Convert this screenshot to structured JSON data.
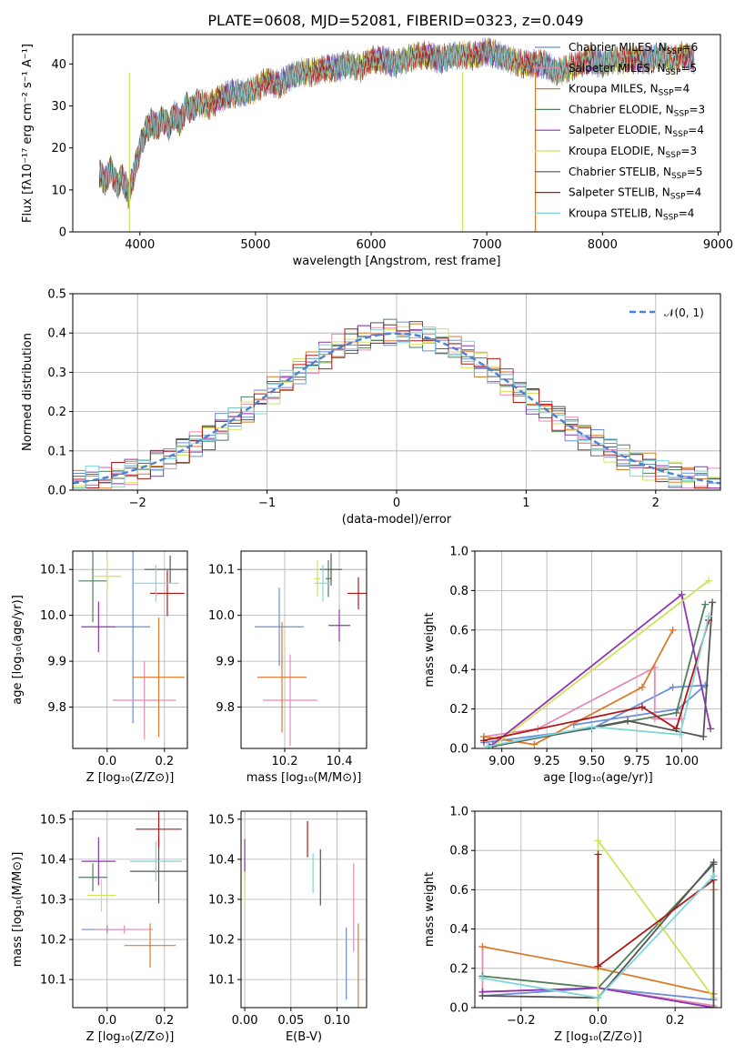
{
  "figure": {
    "title": "PLATE=0608, MJD=52081, FIBERID=0323, z=0.049"
  },
  "colors": {
    "Chabrier MILES": "#6b8fd6",
    "Salpeter MILES": "#e68ab6",
    "Kroupa MILES": "#d97b2b",
    "Chabrier ELODIE": "#4f7f5a",
    "Salpeter ELODIE": "#8e34b0",
    "Kroupa ELODIE": "#cfe35a",
    "Chabrier STELIB": "#555555",
    "Salpeter STELIB": "#b01818",
    "Kroupa STELIB": "#7fd6d8"
  },
  "chart_data": [
    {
      "id": "spectrum",
      "type": "line",
      "xlabel": "wavelength [Angstrom, rest frame]",
      "ylabel": "Flux [fλ10⁻¹⁷ erg cm⁻² s⁻¹ A⁻¹]",
      "xlim": [
        3420,
        9020
      ],
      "ylim": [
        0,
        47
      ],
      "xticks": [
        "4000",
        "5000",
        "6000",
        "7000",
        "8000",
        "9000"
      ],
      "yticks": [
        "0",
        "10",
        "20",
        "30",
        "40"
      ],
      "grid": false,
      "legend_position": "right",
      "legend": [
        {
          "name": "Chabrier MILES",
          "nssp": "6"
        },
        {
          "name": "Salpeter MILES",
          "nssp": "5"
        },
        {
          "name": "Kroupa MILES",
          "nssp": "4"
        },
        {
          "name": "Chabrier ELODIE",
          "nssp": "3"
        },
        {
          "name": "Salpeter ELODIE",
          "nssp": "4"
        },
        {
          "name": "Kroupa ELODIE",
          "nssp": "3"
        },
        {
          "name": "Chabrier STELIB",
          "nssp": "5"
        },
        {
          "name": "Salpeter STELIB",
          "nssp": "4"
        },
        {
          "name": "Kroupa STELIB",
          "nssp": "4"
        }
      ],
      "data_x": [
        3650,
        3700,
        3750,
        3800,
        3850,
        3900,
        3950,
        4000,
        4050,
        4100,
        4150,
        4200,
        4250,
        4300,
        4350,
        4400,
        4450,
        4500,
        4600,
        4700,
        4800,
        4900,
        5000,
        5100,
        5200,
        5300,
        5400,
        5500,
        5600,
        5700,
        5800,
        5900,
        6000,
        6100,
        6200,
        6300,
        6400,
        6500,
        6600,
        6700,
        6800,
        6900,
        7000,
        7100,
        7200,
        7300,
        7400,
        7500,
        7600,
        7700,
        7800,
        7900,
        8000,
        8100,
        8200,
        8300,
        8400,
        8500,
        8600,
        8700,
        8800
      ],
      "data_y": [
        14,
        12,
        15,
        11,
        13,
        9,
        14,
        20,
        24,
        26,
        25,
        27,
        25,
        28,
        26,
        30,
        29,
        31,
        30,
        32,
        33,
        33,
        34,
        36,
        35,
        37,
        38,
        38,
        39,
        39,
        40,
        39,
        41,
        41,
        40,
        41,
        42,
        42,
        41,
        42,
        42,
        42,
        43,
        42,
        41,
        40,
        40,
        40,
        38,
        39,
        40,
        41,
        40,
        41,
        41,
        41,
        41,
        42,
        41,
        42,
        41
      ],
      "spikes_x": [
        3910,
        6790,
        7420
      ]
    },
    {
      "id": "residuals",
      "type": "bar",
      "xlabel": "(data-model)/error",
      "ylabel": "Normed distribution",
      "xlim": [
        -2.5,
        2.5
      ],
      "ylim": [
        0,
        0.5
      ],
      "xticks": [
        "−2",
        "−1",
        "0",
        "1",
        "2"
      ],
      "yticks": [
        "0.0",
        "0.1",
        "0.2",
        "0.3",
        "0.4",
        "0.5"
      ],
      "grid": true,
      "legend_position": "top-right",
      "legend_label": "𝒩(0, 1)",
      "bin_width": 0.1
    },
    {
      "id": "age-vs-Z",
      "type": "scatter",
      "xlabel": "Z [log₁₀(Z/Z⊙)]",
      "ylabel": "age  [log₁₀(age/yr)]",
      "xlim": [
        -0.12,
        0.28
      ],
      "ylim": [
        9.71,
        10.14
      ],
      "xticks": [
        "0.0",
        "0.2"
      ],
      "yticks": [
        "9.8",
        "9.9",
        "10.0",
        "10.1"
      ],
      "grid": true,
      "points": [
        {
          "series": "Chabrier MILES",
          "x": 0.09,
          "y": 9.975,
          "xerr": 0.06,
          "yerr": 0.21
        },
        {
          "series": "Salpeter MILES",
          "x": 0.13,
          "y": 9.815,
          "xerr": 0.11,
          "yerr": 0.085
        },
        {
          "series": "Kroupa MILES",
          "x": 0.18,
          "y": 9.865,
          "xerr": 0.09,
          "yerr": 0.13
        },
        {
          "series": "Chabrier ELODIE",
          "x": -0.05,
          "y": 10.075,
          "xerr": 0.05,
          "yerr": 0.09
        },
        {
          "series": "Salpeter ELODIE",
          "x": -0.03,
          "y": 9.975,
          "xerr": 0.06,
          "yerr": 0.055
        },
        {
          "series": "Kroupa ELODIE",
          "x": 0.0,
          "y": 10.085,
          "xerr": 0.05,
          "yerr": 0.04
        },
        {
          "series": "Chabrier STELIB",
          "x": 0.22,
          "y": 10.1,
          "xerr": 0.09,
          "yerr": 0.03
        },
        {
          "series": "Salpeter STELIB",
          "x": 0.21,
          "y": 10.048,
          "xerr": 0.06,
          "yerr": 0.05
        },
        {
          "series": "Kroupa STELIB",
          "x": 0.17,
          "y": 10.07,
          "xerr": 0.08,
          "yerr": 0.04
        }
      ]
    },
    {
      "id": "age-vs-mass",
      "type": "scatter",
      "xlabel": "mass [log₁₀(M/M⊙)]",
      "ylabel": "",
      "xlim": [
        10.04,
        10.5
      ],
      "ylim": [
        9.71,
        10.14
      ],
      "xticks": [
        "10.2",
        "10.4"
      ],
      "yticks": [
        "9.8",
        "9.9",
        "10.0",
        "10.1"
      ],
      "grid": true,
      "points": [
        {
          "series": "Chabrier MILES",
          "x": 10.18,
          "y": 9.975,
          "xerr": 0.09,
          "yerr": 0.085
        },
        {
          "series": "Salpeter MILES",
          "x": 10.22,
          "y": 9.815,
          "xerr": 0.1,
          "yerr": 0.1
        },
        {
          "series": "Kroupa MILES",
          "x": 10.19,
          "y": 9.865,
          "xerr": 0.09,
          "yerr": 0.12
        },
        {
          "series": "Chabrier ELODIE",
          "x": 10.36,
          "y": 10.08,
          "xerr": 0.01,
          "yerr": 0.04
        },
        {
          "series": "Salpeter ELODIE",
          "x": 10.4,
          "y": 9.978,
          "xerr": 0.04,
          "yerr": 0.035
        },
        {
          "series": "Kroupa ELODIE",
          "x": 10.32,
          "y": 10.08,
          "xerr": 0.01,
          "yerr": 0.04
        },
        {
          "series": "Chabrier STELIB",
          "x": 10.37,
          "y": 10.1,
          "xerr": 0.04,
          "yerr": 0.035
        },
        {
          "series": "Salpeter STELIB",
          "x": 10.47,
          "y": 10.048,
          "xerr": 0.04,
          "yerr": 0.035
        },
        {
          "series": "Kroupa STELIB",
          "x": 10.34,
          "y": 10.07,
          "xerr": 0.03,
          "yerr": 0.04
        }
      ]
    },
    {
      "id": "weight-vs-age",
      "type": "line",
      "xlabel": "age  [log₁₀(age/yr)]",
      "ylabel": "mass weight",
      "xlim": [
        8.85,
        10.22
      ],
      "ylim": [
        0,
        1.0
      ],
      "xticks": [
        "9.00",
        "9.25",
        "9.50",
        "9.75",
        "10.00"
      ],
      "yticks": [
        "0.0",
        "0.2",
        "0.4",
        "0.6",
        "0.8",
        "1.0"
      ],
      "grid": true,
      "series": [
        {
          "name": "Chabrier MILES",
          "x": [
            8.9,
            9.5,
            9.95,
            10.13,
            9.98,
            9.4
          ],
          "y": [
            0.03,
            0.1,
            0.31,
            0.32,
            0.2,
            0.12
          ]
        },
        {
          "name": "Salpeter MILES",
          "x": [
            8.9,
            9.2,
            9.85,
            9.85,
            10.0
          ],
          "y": [
            0.06,
            0.1,
            0.41,
            0.15,
            0.15
          ]
        },
        {
          "name": "Kroupa MILES",
          "x": [
            8.9,
            9.18,
            9.78,
            9.95
          ],
          "y": [
            0.06,
            0.02,
            0.31,
            0.6
          ]
        },
        {
          "name": "Chabrier ELODIE",
          "x": [
            8.93,
            9.97,
            10.13
          ],
          "y": [
            0.01,
            0.18,
            0.73
          ]
        },
        {
          "name": "Salpeter ELODIE",
          "x": [
            8.95,
            10.0,
            10.16
          ],
          "y": [
            0.02,
            0.78,
            0.1
          ]
        },
        {
          "name": "Kroupa ELODIE",
          "x": [
            8.95,
            10.15
          ],
          "y": [
            0.01,
            0.85
          ]
        },
        {
          "name": "Chabrier STELIB",
          "x": [
            8.95,
            9.7,
            10.12,
            10.17
          ],
          "y": [
            0.01,
            0.14,
            0.06,
            0.74
          ]
        },
        {
          "name": "Salpeter STELIB",
          "x": [
            8.9,
            9.78,
            9.97,
            10.15
          ],
          "y": [
            0.04,
            0.21,
            0.1,
            0.65
          ]
        },
        {
          "name": "Kroupa STELIB",
          "x": [
            8.92,
            9.5,
            9.99,
            10.15
          ],
          "y": [
            0.01,
            0.11,
            0.07,
            0.67
          ]
        }
      ]
    },
    {
      "id": "mass-vs-Z",
      "type": "scatter",
      "xlabel": "Z [log₁₀(Z/Z⊙)]",
      "ylabel": "mass [log₁₀(M/M⊙)]",
      "xlim": [
        -0.12,
        0.28
      ],
      "ylim": [
        10.03,
        10.52
      ],
      "xticks": [
        "0.0",
        "0.2"
      ],
      "yticks": [
        "10.1",
        "10.2",
        "10.3",
        "10.4",
        "10.5"
      ],
      "grid": true,
      "points": [
        {
          "series": "Chabrier MILES",
          "x": 0.0,
          "y": 10.225,
          "xerr": 0.09,
          "yerr": 0.01
        },
        {
          "series": "Salpeter MILES",
          "x": 0.06,
          "y": 10.225,
          "xerr": 0.1,
          "yerr": 0.01
        },
        {
          "series": "Kroupa MILES",
          "x": 0.15,
          "y": 10.185,
          "xerr": 0.09,
          "yerr": 0.055
        },
        {
          "series": "Chabrier ELODIE",
          "x": -0.05,
          "y": 10.355,
          "xerr": 0.05,
          "yerr": 0.035
        },
        {
          "series": "Salpeter ELODIE",
          "x": -0.03,
          "y": 10.395,
          "xerr": 0.06,
          "yerr": 0.06
        },
        {
          "series": "Kroupa ELODIE",
          "x": -0.02,
          "y": 10.31,
          "xerr": 0.05,
          "yerr": 0.04
        },
        {
          "series": "Chabrier STELIB",
          "x": 0.18,
          "y": 10.37,
          "xerr": 0.1,
          "yerr": 0.08
        },
        {
          "series": "Salpeter STELIB",
          "x": 0.18,
          "y": 10.475,
          "xerr": 0.08,
          "yerr": 0.045
        },
        {
          "series": "Kroupa STELIB",
          "x": 0.17,
          "y": 10.395,
          "xerr": 0.09,
          "yerr": 0.05
        }
      ]
    },
    {
      "id": "mass-vs-EBV",
      "type": "scatter",
      "xlabel": "E(B-V)",
      "ylabel": "",
      "xlim": [
        -0.004,
        0.132
      ],
      "ylim": [
        10.03,
        10.52
      ],
      "xticks": [
        "0.00",
        "0.05",
        "0.10"
      ],
      "yticks": [
        "10.1",
        "10.2",
        "10.3",
        "10.4",
        "10.5"
      ],
      "grid": true,
      "points": [
        {
          "series": "Chabrier MILES",
          "x": 0.11,
          "y": 10.14,
          "xerr": 0,
          "yerr": 0.09
        },
        {
          "series": "Salpeter MILES",
          "x": 0.118,
          "y": 10.28,
          "xerr": 0,
          "yerr": 0.11
        },
        {
          "series": "Kroupa MILES",
          "x": 0.123,
          "y": 10.11,
          "xerr": 0,
          "yerr": 0.13
        },
        {
          "series": "Chabrier ELODIE",
          "x": 0.0,
          "y": 10.37,
          "xerr": 0,
          "yerr": 0.02
        },
        {
          "series": "Salpeter ELODIE",
          "x": 0.0,
          "y": 10.41,
          "xerr": 0,
          "yerr": 0.04
        },
        {
          "series": "Kroupa ELODIE",
          "x": 0.0,
          "y": 10.33,
          "xerr": 0,
          "yerr": 0.04
        },
        {
          "series": "Chabrier STELIB",
          "x": 0.082,
          "y": 10.355,
          "xerr": 0,
          "yerr": 0.07
        },
        {
          "series": "Salpeter STELIB",
          "x": 0.068,
          "y": 10.45,
          "xerr": 0,
          "yerr": 0.045
        },
        {
          "series": "Kroupa STELIB",
          "x": 0.074,
          "y": 10.365,
          "xerr": 0,
          "yerr": 0.05
        }
      ]
    },
    {
      "id": "weight-vs-Z",
      "type": "line",
      "xlabel": "Z [log₁₀(Z/Z⊙)]",
      "ylabel": "mass weight",
      "xlim": [
        -0.32,
        0.32
      ],
      "ylim": [
        0,
        1.0
      ],
      "xticks": [
        "−0.2",
        "0.0",
        "0.2"
      ],
      "yticks": [
        "0.0",
        "0.2",
        "0.4",
        "0.6",
        "0.8",
        "1.0"
      ],
      "grid": true,
      "series": [
        {
          "name": "Chabrier MILES",
          "x": [
            -0.3,
            0.0,
            0.3
          ],
          "y": [
            0.06,
            0.1,
            0.04
          ]
        },
        {
          "name": "Salpeter MILES",
          "x": [
            -0.3,
            -0.3,
            0.0,
            0.3
          ],
          "y": [
            0.31,
            0.08,
            0.1,
            0.01
          ]
        },
        {
          "name": "Kroupa MILES",
          "x": [
            -0.3,
            0.0,
            0.3,
            0.3
          ],
          "y": [
            0.31,
            0.2,
            0.07,
            0.6
          ]
        },
        {
          "name": "Chabrier ELODIE",
          "x": [
            -0.3,
            0.0,
            0.3
          ],
          "y": [
            0.16,
            0.1,
            0.73
          ]
        },
        {
          "name": "Salpeter ELODIE",
          "x": [
            -0.3,
            0.0,
            0.3
          ],
          "y": [
            0.08,
            0.1,
            0.0
          ]
        },
        {
          "name": "Kroupa ELODIE",
          "x": [
            0.0,
            0.0,
            0.3
          ],
          "y": [
            0.0,
            0.85,
            0.05
          ]
        },
        {
          "name": "Chabrier STELIB",
          "x": [
            -0.3,
            0.0,
            0.3,
            0.3
          ],
          "y": [
            0.06,
            0.05,
            0.74,
            0.0
          ]
        },
        {
          "name": "Salpeter STELIB",
          "x": [
            0.0,
            0.0,
            0.3
          ],
          "y": [
            0.78,
            0.21,
            0.65
          ]
        },
        {
          "name": "Kroupa STELIB",
          "x": [
            -0.3,
            0.0,
            0.3
          ],
          "y": [
            0.15,
            0.05,
            0.67
          ]
        }
      ]
    }
  ]
}
